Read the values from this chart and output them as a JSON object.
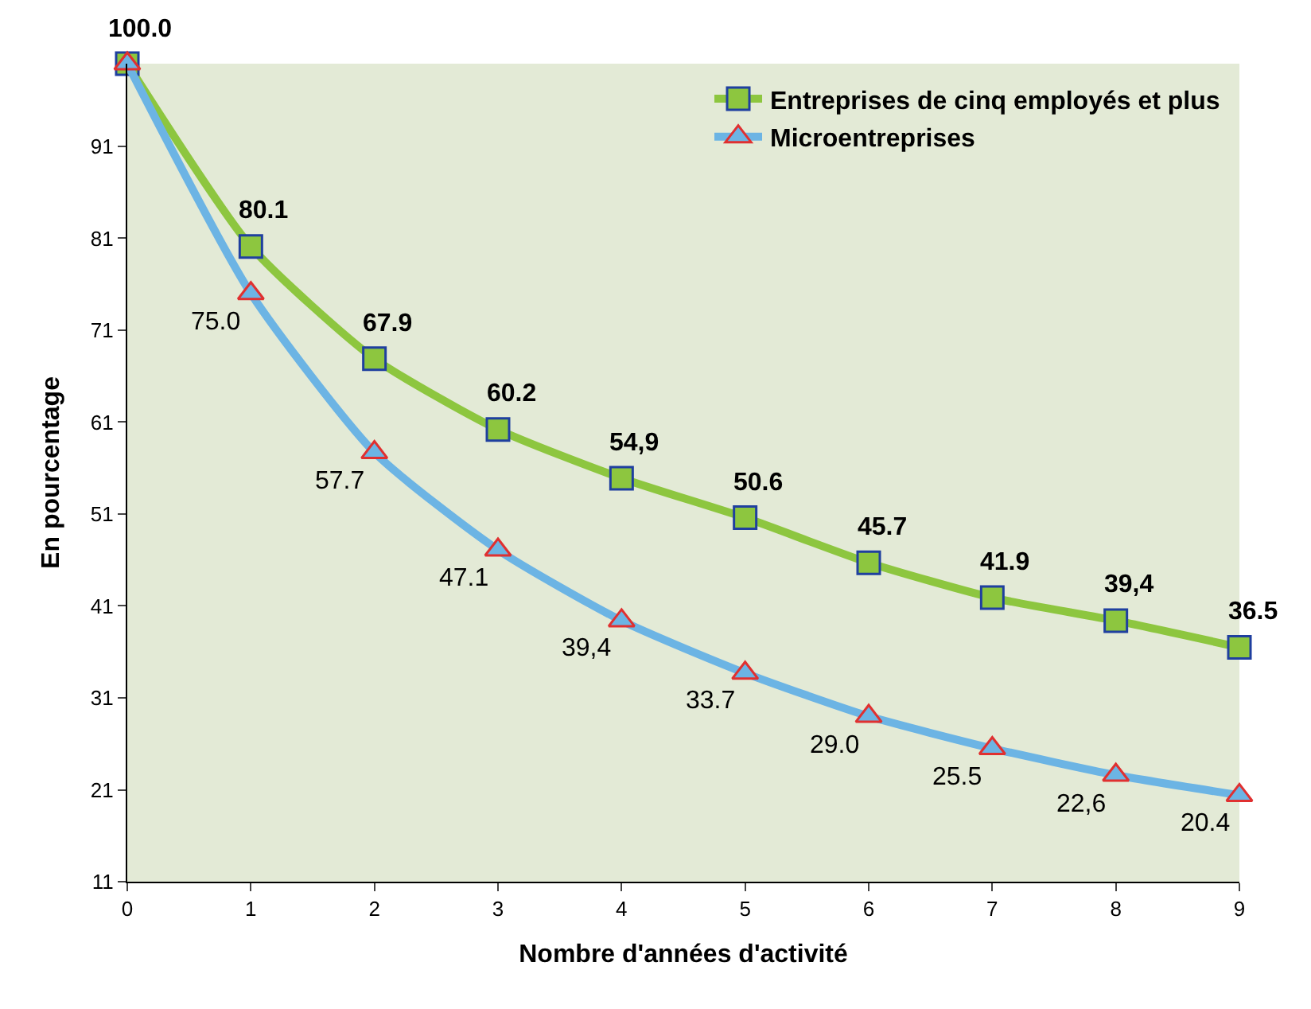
{
  "chart_data": {
    "type": "line",
    "xlabel": "Nombre d'années d'activité",
    "ylabel": "En pourcentage",
    "x": [
      0,
      1,
      2,
      3,
      4,
      5,
      6,
      7,
      8,
      9
    ],
    "xlim": [
      0,
      9
    ],
    "xticks": [
      0,
      1,
      2,
      3,
      4,
      5,
      6,
      7,
      8,
      9
    ],
    "ylim": [
      11,
      100
    ],
    "yticks": [
      11,
      21,
      31,
      41,
      51,
      61,
      71,
      81,
      91
    ],
    "grid": false,
    "legend": "top right",
    "series": [
      {
        "name": "Entreprises de cinq employés et plus",
        "color": "#8dc63f",
        "marker": "square",
        "values": [
          100.0,
          80.1,
          67.9,
          60.2,
          54.9,
          50.6,
          45.7,
          41.9,
          39.4,
          36.5
        ],
        "value_labels": [
          "100.0",
          "80.1",
          "67.9",
          "60.2",
          "54,9",
          "50.6",
          "45.7",
          "41.9",
          "39,4",
          "36.5"
        ]
      },
      {
        "name": "Microentreprises",
        "color": "#6cb4e4",
        "marker": "triangle",
        "values": [
          100.0,
          75.0,
          57.7,
          47.1,
          39.4,
          33.7,
          29.0,
          25.5,
          22.6,
          20.4
        ],
        "value_labels": [
          null,
          "75.0",
          "57.7",
          "47.1",
          "39,4",
          "33.7",
          "29.0",
          "25.5",
          "22,6",
          "20.4"
        ]
      }
    ]
  }
}
